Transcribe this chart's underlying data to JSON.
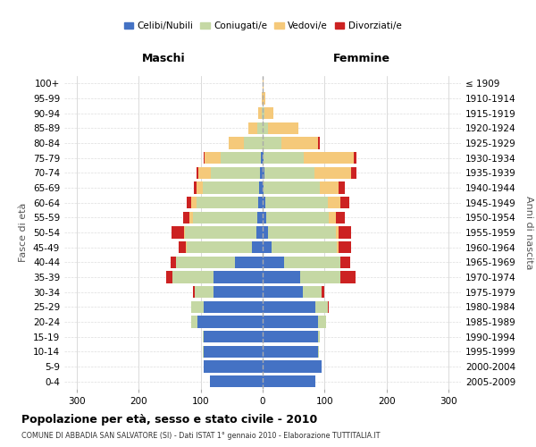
{
  "age_groups": [
    "0-4",
    "5-9",
    "10-14",
    "15-19",
    "20-24",
    "25-29",
    "30-34",
    "35-39",
    "40-44",
    "45-49",
    "50-54",
    "55-59",
    "60-64",
    "65-69",
    "70-74",
    "75-79",
    "80-84",
    "85-89",
    "90-94",
    "95-99",
    "100+"
  ],
  "birth_years": [
    "2005-2009",
    "2000-2004",
    "1995-1999",
    "1990-1994",
    "1985-1989",
    "1980-1984",
    "1975-1979",
    "1970-1974",
    "1965-1969",
    "1960-1964",
    "1955-1959",
    "1950-1954",
    "1945-1949",
    "1940-1944",
    "1935-1939",
    "1930-1934",
    "1925-1929",
    "1920-1924",
    "1915-1919",
    "1910-1914",
    "≤ 1909"
  ],
  "males": {
    "celibi": [
      85,
      95,
      95,
      95,
      105,
      95,
      80,
      80,
      45,
      18,
      10,
      8,
      7,
      6,
      4,
      3,
      0,
      0,
      0,
      0,
      0
    ],
    "coniugati": [
      0,
      0,
      1,
      2,
      10,
      20,
      30,
      65,
      95,
      105,
      115,
      105,
      100,
      90,
      80,
      65,
      30,
      8,
      2,
      0,
      0
    ],
    "vedovi": [
      0,
      0,
      0,
      0,
      0,
      0,
      0,
      0,
      0,
      1,
      2,
      5,
      8,
      10,
      20,
      25,
      25,
      15,
      5,
      2,
      0
    ],
    "divorziati": [
      0,
      0,
      0,
      0,
      0,
      1,
      2,
      10,
      8,
      12,
      20,
      10,
      8,
      5,
      3,
      2,
      0,
      0,
      0,
      0,
      0
    ]
  },
  "females": {
    "nubili": [
      85,
      95,
      90,
      90,
      90,
      85,
      65,
      60,
      35,
      15,
      8,
      6,
      5,
      2,
      3,
      2,
      0,
      0,
      0,
      0,
      0
    ],
    "coniugate": [
      0,
      0,
      1,
      2,
      12,
      20,
      30,
      65,
      90,
      105,
      110,
      100,
      100,
      90,
      80,
      65,
      30,
      8,
      3,
      0,
      0
    ],
    "vedove": [
      0,
      0,
      0,
      0,
      0,
      0,
      0,
      0,
      1,
      2,
      5,
      12,
      20,
      30,
      60,
      80,
      60,
      50,
      15,
      5,
      2
    ],
    "divorziate": [
      0,
      0,
      0,
      0,
      0,
      1,
      5,
      25,
      15,
      20,
      20,
      15,
      15,
      10,
      8,
      5,
      2,
      0,
      0,
      0,
      0
    ]
  },
  "colors": {
    "celibi": "#4472C4",
    "coniugati": "#c5d8a4",
    "vedovi": "#f5c97a",
    "divorziati": "#cc2222"
  },
  "xlim": 320,
  "title": "Popolazione per età, sesso e stato civile - 2010",
  "subtitle": "COMUNE DI ABBADIA SAN SALVATORE (SI) - Dati ISTAT 1° gennaio 2010 - Elaborazione TUTTITALIA.IT",
  "legend_labels": [
    "Celibi/Nubili",
    "Coniugati/e",
    "Vedovi/e",
    "Divorziati/e"
  ],
  "ylabel_left": "Fasce di età",
  "ylabel_right": "Anni di nascita",
  "xlabel_maschi": "Maschi",
  "xlabel_femmine": "Femmine"
}
